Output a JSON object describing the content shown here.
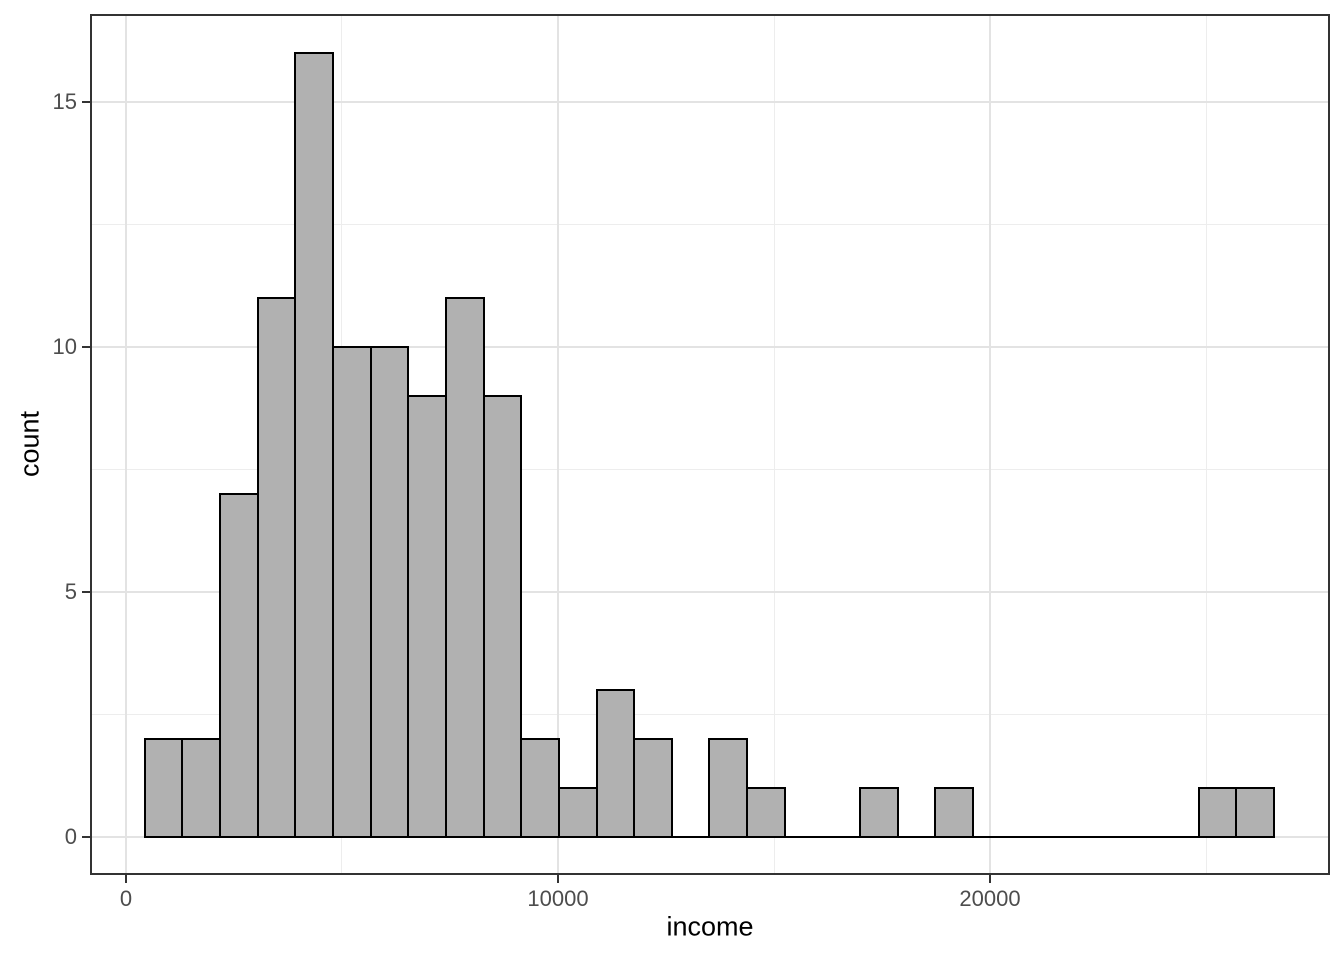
{
  "chart_data": {
    "type": "bar",
    "subtype": "histogram",
    "title": "",
    "xlabel": "income",
    "ylabel": "count",
    "bins": {
      "start": 435.66,
      "binwidth": 871.31,
      "counts": [
        2,
        2,
        7,
        11,
        16,
        10,
        10,
        9,
        11,
        9,
        2,
        1,
        3,
        2,
        0,
        2,
        1,
        0,
        0,
        1,
        0,
        1,
        0,
        0,
        0,
        0,
        0,
        0,
        1,
        1
      ]
    },
    "xlim": [
      -787,
      27824
    ],
    "ylim": [
      -0.735,
      16.755
    ],
    "x_ticks": {
      "major": [
        {
          "value": 0,
          "label": "0"
        },
        {
          "value": 10000,
          "label": "10000"
        },
        {
          "value": 20000,
          "label": "20000"
        }
      ],
      "minor": [
        5000,
        15000,
        25000
      ]
    },
    "y_ticks": {
      "major": [
        {
          "value": 0,
          "label": "0"
        },
        {
          "value": 5,
          "label": "5"
        },
        {
          "value": 10,
          "label": "10"
        },
        {
          "value": 15,
          "label": "15"
        }
      ],
      "minor": [
        2.5,
        7.5,
        12.5
      ]
    },
    "grid": true,
    "legend": "none",
    "colors": {
      "bar_fill": "#b1b1b1",
      "bar_stroke": "#000000",
      "grid_major": "#e3e3e3",
      "grid_minor": "#ededed",
      "panel_border": "#333333",
      "panel_bg": "#ffffff",
      "tick_mark": "#333333",
      "tick_label": "#4d4d4d",
      "axis_title": "#000000"
    }
  }
}
